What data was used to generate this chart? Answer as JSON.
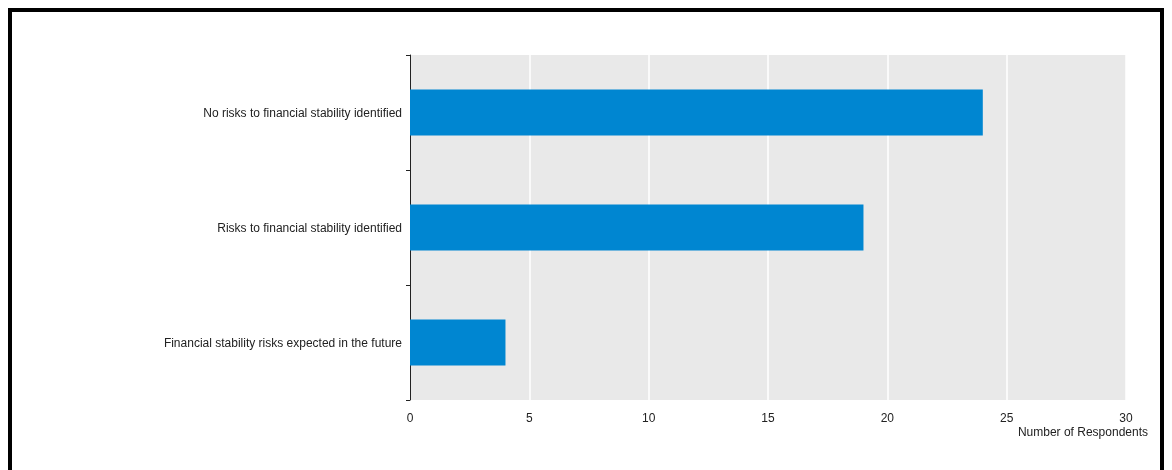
{
  "chart_data": {
    "type": "bar",
    "orientation": "horizontal",
    "categories": [
      "No risks to financial stability identified",
      "Risks to financial stability identified",
      "Financial stability risks expected in the future"
    ],
    "values": [
      24,
      19,
      4
    ],
    "color": "#0086d1",
    "xlim": [
      0,
      30
    ],
    "xticks": [
      0,
      5,
      10,
      15,
      20,
      25,
      30
    ],
    "xlabel": "Number of Respondents",
    "grid": "x"
  }
}
